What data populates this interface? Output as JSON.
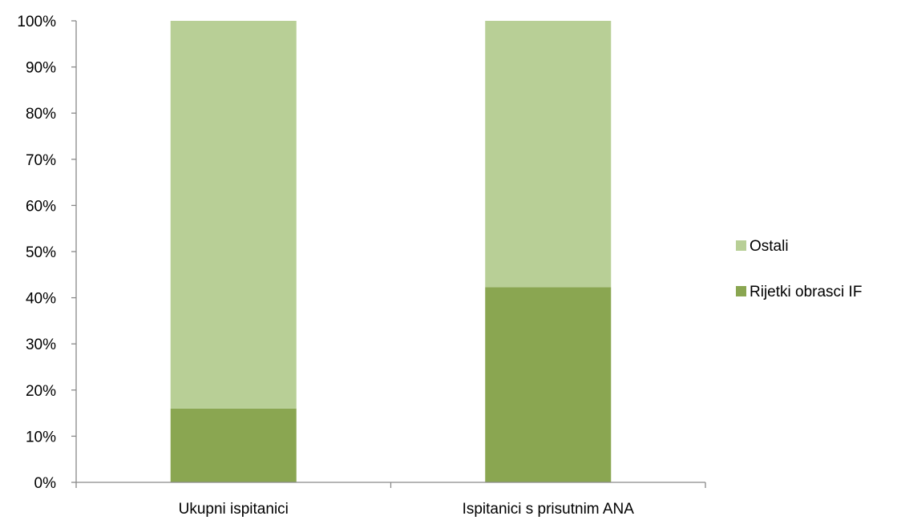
{
  "chart_data": {
    "type": "bar",
    "stacked": true,
    "percent_stacked": true,
    "categories": [
      "Ukupni ispitanici",
      "Ispitanici s prisutnim ANA"
    ],
    "series": [
      {
        "name": "Rijetki obrasci IF",
        "values": [
          16,
          42.3
        ],
        "color": "#8aa651"
      },
      {
        "name": "Ostali",
        "values": [
          84,
          57.7
        ],
        "color": "#b8cf96"
      }
    ],
    "y_ticks": [
      "0%",
      "10%",
      "20%",
      "30%",
      "40%",
      "50%",
      "60%",
      "70%",
      "80%",
      "90%",
      "100%"
    ],
    "ylim": [
      0,
      100
    ],
    "grid": false,
    "legend_position": "right",
    "legend_order": [
      "Ostali",
      "Rijetki obrasci IF"
    ]
  }
}
